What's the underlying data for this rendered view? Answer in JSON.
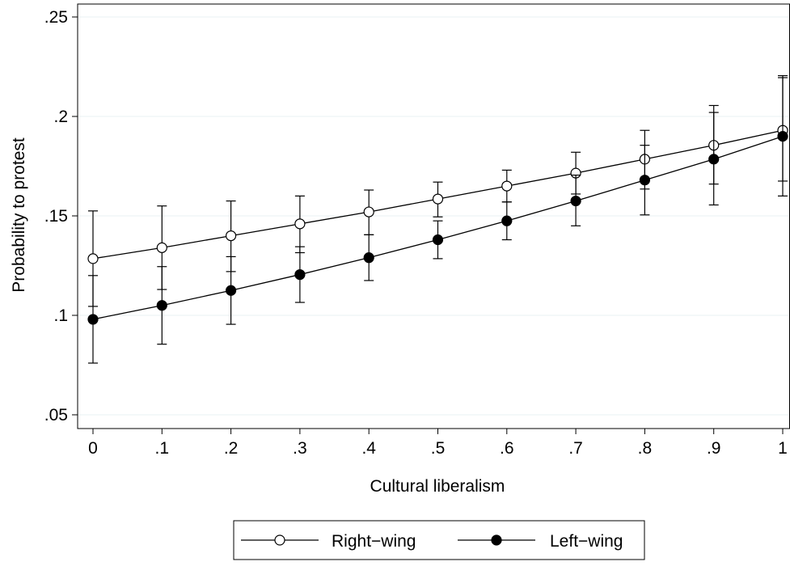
{
  "chart_data": {
    "type": "line",
    "title": "",
    "xlabel": "Cultural liberalism",
    "ylabel": "Probability to protest",
    "x": [
      0,
      0.1,
      0.2,
      0.3,
      0.4,
      0.5,
      0.6,
      0.7,
      0.8,
      0.9,
      1
    ],
    "xlim": [
      0,
      1
    ],
    "ylim": [
      0.05,
      0.25
    ],
    "xticks": [
      0,
      0.1,
      0.2,
      0.3,
      0.4,
      0.5,
      0.6,
      0.7,
      0.8,
      0.9,
      1
    ],
    "xtick_labels": [
      "0",
      ".1",
      ".2",
      ".3",
      ".4",
      ".5",
      ".6",
      ".7",
      ".8",
      ".9",
      "1"
    ],
    "yticks": [
      0.05,
      0.1,
      0.15,
      0.2,
      0.25
    ],
    "ytick_labels": [
      ".05",
      ".1",
      ".15",
      ".2",
      ".25"
    ],
    "grid": true,
    "legend_position": "bottom",
    "series": [
      {
        "name": "Right−wing",
        "marker": "hollow-circle",
        "values": [
          0.1285,
          0.134,
          0.14,
          0.146,
          0.152,
          0.1585,
          0.165,
          0.1715,
          0.1785,
          0.1855,
          0.193
        ],
        "ci_low": [
          0.1045,
          0.113,
          0.122,
          0.1315,
          0.1405,
          0.1495,
          0.157,
          0.161,
          0.1635,
          0.166,
          0.1675
        ],
        "ci_high": [
          0.1525,
          0.155,
          0.1575,
          0.16,
          0.163,
          0.167,
          0.173,
          0.182,
          0.193,
          0.2055,
          0.2205
        ]
      },
      {
        "name": "Left−wing",
        "marker": "filled-circle",
        "values": [
          0.098,
          0.105,
          0.1125,
          0.1205,
          0.129,
          0.138,
          0.1475,
          0.1575,
          0.168,
          0.1785,
          0.19
        ],
        "ci_low": [
          0.076,
          0.0855,
          0.0955,
          0.1065,
          0.1175,
          0.1285,
          0.138,
          0.145,
          0.1505,
          0.1555,
          0.16
        ],
        "ci_high": [
          0.12,
          0.1245,
          0.1295,
          0.1345,
          0.1405,
          0.1475,
          0.157,
          0.1705,
          0.1855,
          0.202,
          0.2195
        ]
      }
    ],
    "colors": {
      "line": "#000000",
      "grid": "#eaf0f3",
      "background": "#ffffff"
    }
  }
}
